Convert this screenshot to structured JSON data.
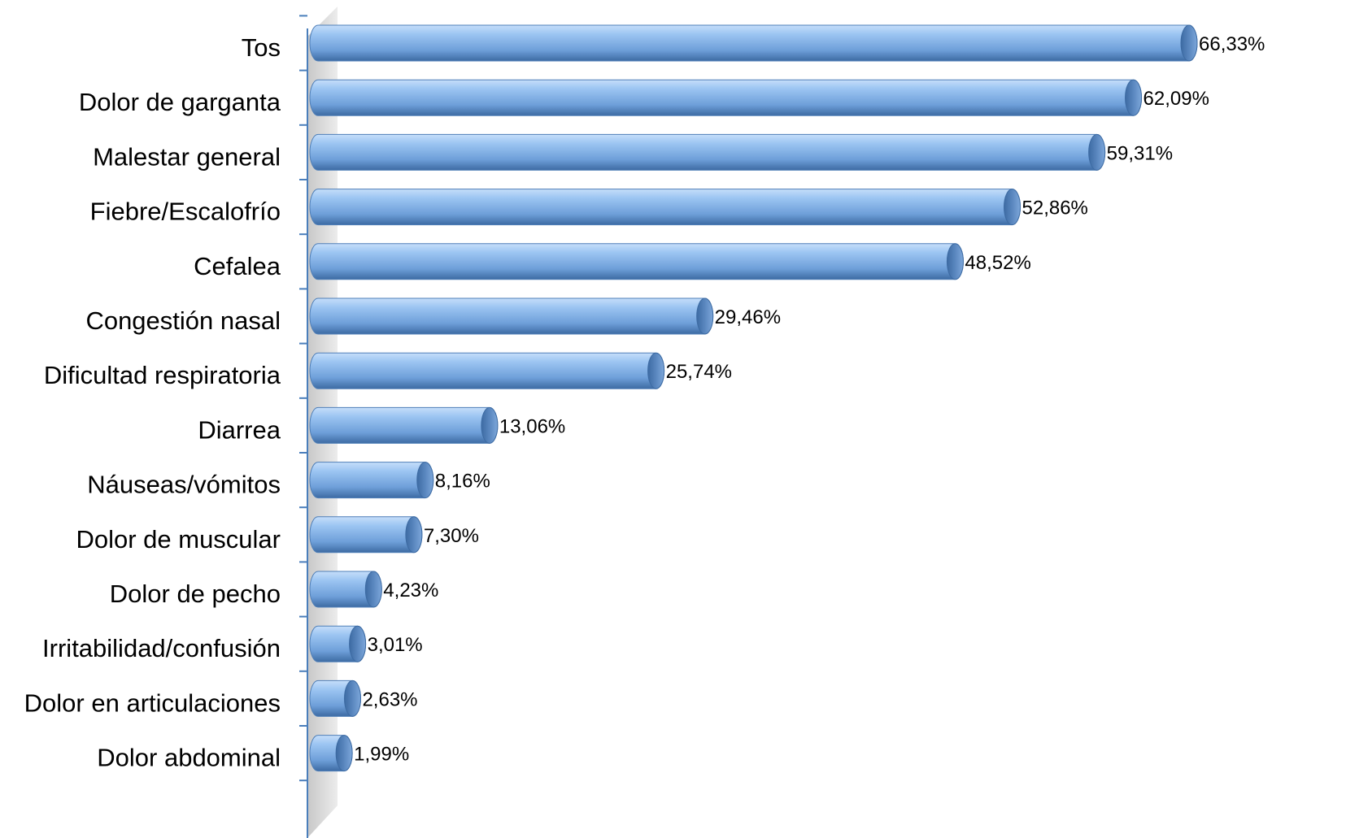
{
  "chart_data": {
    "type": "bar",
    "orientation": "horizontal",
    "style": "3d-cylinder",
    "title": "",
    "xlabel": "",
    "ylabel": "",
    "categories": [
      "Tos",
      "Dolor de garganta",
      "Malestar general",
      "Fiebre/Escalofrío",
      "Cefalea",
      "Congestión nasal",
      "Dificultad respiratoria",
      "Diarrea",
      "Náuseas/vómitos",
      "Dolor de muscular",
      "Dolor de pecho",
      "Irritabilidad/confusión",
      "Dolor en articulaciones",
      "Dolor abdominal"
    ],
    "values": [
      66.33,
      62.09,
      59.31,
      52.86,
      48.52,
      29.46,
      25.74,
      13.06,
      8.16,
      7.3,
      4.23,
      3.01,
      2.63,
      1.99
    ],
    "value_labels": [
      "66,33%",
      "62,09%",
      "59,31%",
      "52,86%",
      "48,52%",
      "29,46%",
      "25,74%",
      "13,06%",
      "8,16%",
      "7,30%",
      "4,23%",
      "3,01%",
      "2,63%",
      "1,99%"
    ],
    "xlim": [
      0,
      70
    ],
    "grid": false,
    "legend": "none",
    "colors": {
      "bar_light": "#9cc5f2",
      "bar_mid": "#6e9fd9",
      "bar_dark": "#3d6ba3",
      "cap": "#5a87bf",
      "axis": "#4a7ebb",
      "wall": "#d9d9d9"
    }
  }
}
